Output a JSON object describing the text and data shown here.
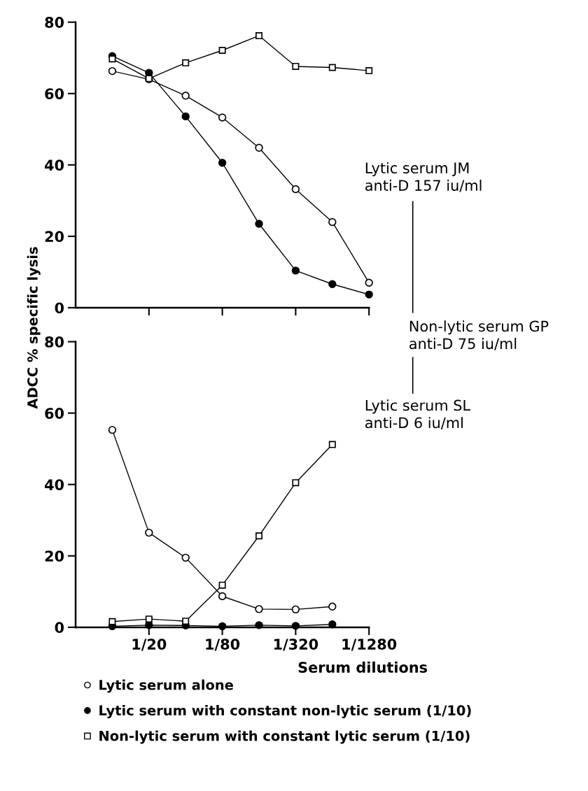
{
  "chart_data": [
    {
      "type": "line",
      "ylabel": "ADCC % specific lysis",
      "categories": [
        null,
        null,
        null,
        null,
        null,
        null,
        null,
        null
      ],
      "ylim": [
        0,
        80
      ],
      "yticks": [
        0,
        20,
        40,
        60,
        80
      ],
      "tick_labels": "y",
      "grid": false,
      "legend": false,
      "line_style": "solid",
      "annotations": [
        "Lytic serum JM\nanti-D 157 iu/ml",
        "Non-lytic serum GP\nanti-D 75 iu/ml",
        "Lytic serum SL\nanti-D 6 iu/ml"
      ],
      "series": [
        {
          "color": "#ffffff",
          "marker": "circle",
          "values": [
            66.3,
            64.0,
            59.4,
            53.3,
            44.8,
            33.2,
            24.0,
            7.0
          ]
        },
        {
          "color": "#000000",
          "marker": "circle",
          "values": [
            70.5,
            65.8,
            53.6,
            40.6,
            23.5,
            10.4,
            6.6,
            3.7
          ]
        },
        {
          "color": "#ffffff",
          "marker": "square",
          "values": [
            69.7,
            64.2,
            68.6,
            72.1,
            76.2,
            67.6,
            67.3,
            66.4
          ]
        }
      ]
    },
    {
      "type": "line",
      "xlabel": "Serum dilutions",
      "categories": [
        null,
        "1/20",
        null,
        "1/80",
        null,
        "1/320",
        null,
        "1/1280"
      ],
      "ylim": [
        0,
        80
      ],
      "yticks": [
        0,
        20,
        40,
        60,
        80
      ],
      "grid": false,
      "legend": "bottom",
      "line_style": "solid",
      "series": [
        {
          "name": "Lytic serum alone",
          "color": "#ffffff",
          "marker": "circle",
          "values": [
            55.3,
            26.5,
            19.5,
            8.7,
            5.1,
            5.0,
            5.8,
            null
          ]
        },
        {
          "name": "Lytic serum with constant non-lytic serum (1/10)",
          "color": "#000000",
          "marker": "circle",
          "values": [
            0.3,
            0.6,
            0.5,
            0.3,
            0.6,
            0.4,
            0.8,
            null
          ]
        },
        {
          "name": "Non-lytic serum with constant lytic serum (1/10)",
          "color": "#ffffff",
          "marker": "square",
          "values": [
            1.6,
            2.3,
            1.7,
            11.8,
            25.6,
            40.5,
            51.2,
            null
          ]
        }
      ]
    }
  ]
}
